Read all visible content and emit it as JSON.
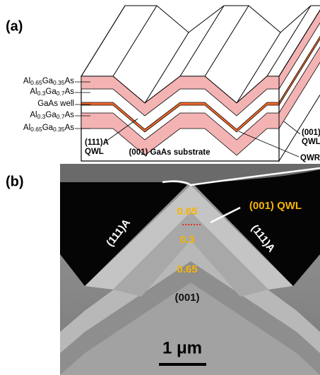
{
  "panel_a": {
    "label": "(a)",
    "layers": [
      [
        "Al",
        "0.65",
        "Ga",
        "0.35",
        "As"
      ],
      [
        "Al",
        "0.3",
        "Ga",
        "0.7",
        "As"
      ],
      [
        "GaAs well"
      ],
      [
        "Al",
        "0.3",
        "Ga",
        "0.7",
        "As"
      ],
      [
        "Al",
        "0.65",
        "Ga",
        "0.35",
        "As"
      ]
    ],
    "facet_qwl": [
      "(111)A",
      "QWL"
    ],
    "substrate": "(001) GaAs substrate",
    "top_qwl": [
      "(001)",
      "QWL"
    ],
    "qwr": "QWR"
  },
  "panel_b": {
    "label": "(b)",
    "top_value": "0.65",
    "qwl": "(001) QWL",
    "well_value": "0.3",
    "lower_value": "0.65",
    "bottom_facet": "(001)",
    "side_facets": [
      "(111)A",
      "(111)A"
    ],
    "scale": "1 μm"
  }
}
